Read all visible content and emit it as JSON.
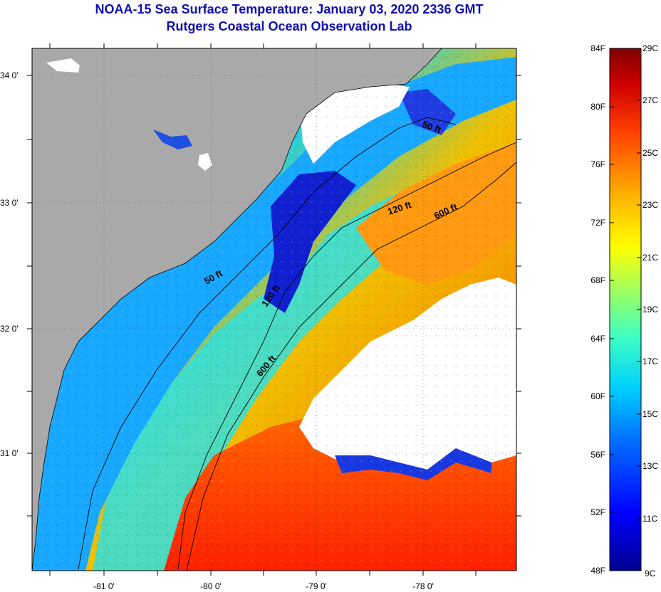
{
  "header": {
    "title": "NOAA-15 Sea Surface Temperature:  January 03, 2020 2336 GMT",
    "subtitle": "Rutgers Coastal Ocean Observation Lab"
  },
  "map": {
    "lat_labels": [
      "34 0'",
      "33 0'",
      "32 0'",
      "31 0'"
    ],
    "lon_labels": [
      "-81 0'",
      "-80 0'",
      "-79 0'",
      "-78 0'"
    ],
    "contour_labels": [
      "50 ft",
      "120 ft",
      "600 ft",
      "50 ft",
      "120 ft",
      "600 ft"
    ],
    "colors": {
      "land": "#a9a9a9",
      "cloud": "#ffffff"
    }
  },
  "colorbar": {
    "fahrenheit_labels": [
      "84F",
      "80F",
      "76F",
      "72F",
      "68F",
      "64F",
      "60F",
      "56F",
      "52F",
      "48F"
    ],
    "celsius_labels": [
      "29C",
      "27C",
      "25C",
      "23C",
      "21C",
      "19C",
      "17C",
      "15C",
      "13C",
      "11C",
      "9C"
    ],
    "colors": [
      "#00008f",
      "#0000ff",
      "#0060ff",
      "#00c0ff",
      "#30ffd0",
      "#90ff70",
      "#f0ff00",
      "#ffb000",
      "#ff5000",
      "#e00000",
      "#800000"
    ]
  }
}
